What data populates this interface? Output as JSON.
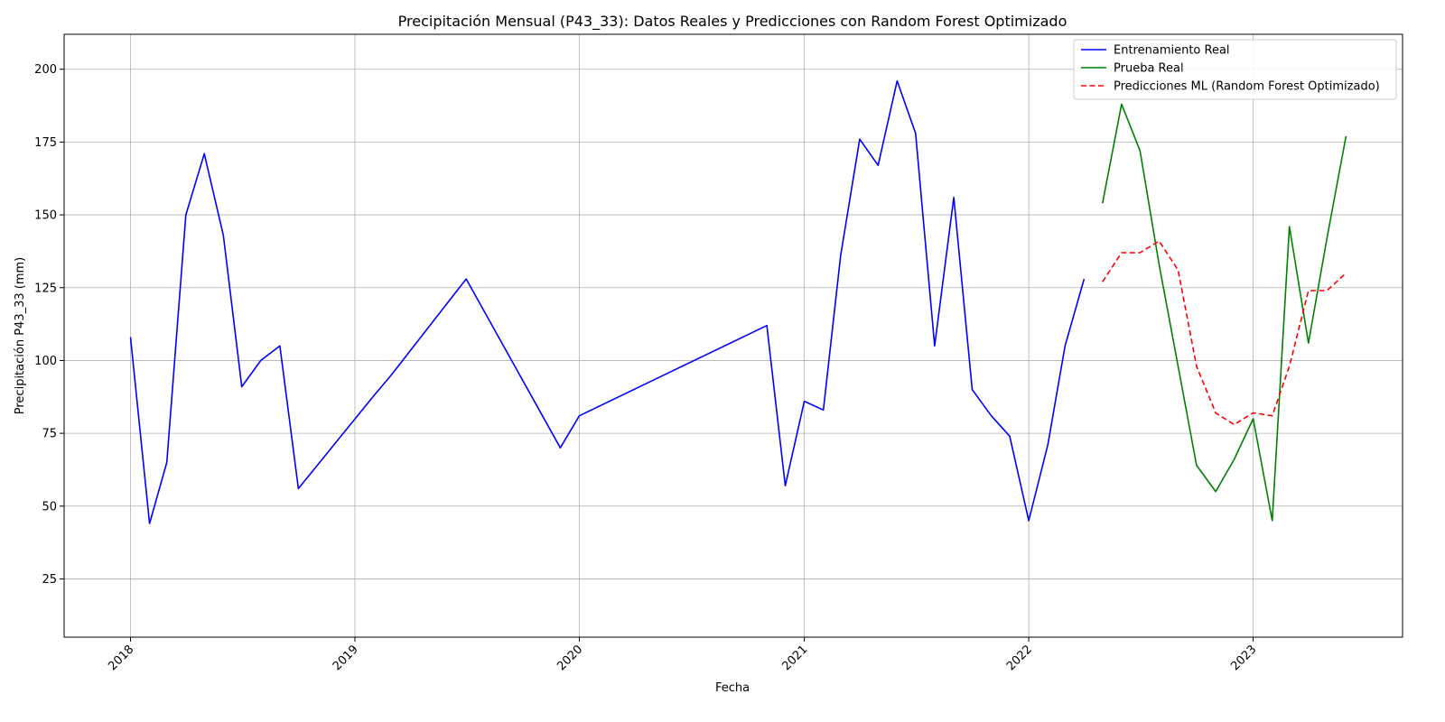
{
  "chart_data": {
    "type": "line",
    "title": "Precipitación Mensual (P43_33): Datos Reales y Predicciones con Random Forest Optimizado",
    "xlabel": "Fecha",
    "ylabel": "Precipitación P43_33 (mm)",
    "xlim": [
      "2017-09-15",
      "2023-09-01"
    ],
    "ylim": [
      5,
      212
    ],
    "x_ticks": [
      "2018",
      "2019",
      "2020",
      "2021",
      "2022",
      "2023"
    ],
    "y_ticks": [
      25,
      50,
      75,
      100,
      125,
      150,
      175,
      200
    ],
    "grid": true,
    "legend_position": "top-right",
    "series": [
      {
        "name": "Entrenamiento Real",
        "color": "#0000ff",
        "style": "solid",
        "points": [
          [
            "2018-01-01",
            108
          ],
          [
            "2018-02-01",
            44
          ],
          [
            "2018-03-01",
            65
          ],
          [
            "2018-04-01",
            150
          ],
          [
            "2018-05-01",
            171
          ],
          [
            "2018-06-01",
            143
          ],
          [
            "2018-07-01",
            91
          ],
          [
            "2018-08-01",
            100
          ],
          [
            "2018-09-01",
            105
          ],
          [
            "2018-10-01",
            56
          ],
          [
            "2019-02-01",
            88
          ],
          [
            "2019-03-01",
            95
          ],
          [
            "2019-07-01",
            128
          ],
          [
            "2019-12-01",
            70
          ],
          [
            "2020-01-01",
            81
          ],
          [
            "2020-11-01",
            112
          ],
          [
            "2020-12-01",
            57
          ],
          [
            "2021-01-01",
            86
          ],
          [
            "2021-02-01",
            83
          ],
          [
            "2021-03-01",
            136
          ],
          [
            "2021-04-01",
            176
          ],
          [
            "2021-05-01",
            167
          ],
          [
            "2021-06-01",
            196
          ],
          [
            "2021-07-01",
            178
          ],
          [
            "2021-08-01",
            105
          ],
          [
            "2021-09-01",
            156
          ],
          [
            "2021-10-01",
            90
          ],
          [
            "2021-11-01",
            81
          ],
          [
            "2021-12-01",
            74
          ],
          [
            "2022-01-01",
            45
          ],
          [
            "2022-02-01",
            71
          ],
          [
            "2022-03-01",
            105
          ],
          [
            "2022-04-01",
            128
          ]
        ]
      },
      {
        "name": "Prueba Real",
        "color": "#008000",
        "style": "solid",
        "points": [
          [
            "2022-05-01",
            154
          ],
          [
            "2022-06-01",
            188
          ],
          [
            "2022-07-01",
            172
          ],
          [
            "2022-08-01",
            133
          ],
          [
            "2022-09-01",
            98
          ],
          [
            "2022-10-01",
            64
          ],
          [
            "2022-11-01",
            55
          ],
          [
            "2022-12-01",
            66
          ],
          [
            "2023-01-01",
            80
          ],
          [
            "2023-02-01",
            45
          ],
          [
            "2023-03-01",
            146
          ],
          [
            "2023-04-01",
            106
          ],
          [
            "2023-05-01",
            142
          ],
          [
            "2023-06-01",
            177
          ]
        ]
      },
      {
        "name": "Predicciones ML (Random Forest Optimizado)",
        "color": "#ff0000",
        "style": "dashed",
        "points": [
          [
            "2022-05-01",
            127
          ],
          [
            "2022-06-01",
            137
          ],
          [
            "2022-07-01",
            137
          ],
          [
            "2022-08-01",
            141
          ],
          [
            "2022-09-01",
            131
          ],
          [
            "2022-10-01",
            98
          ],
          [
            "2022-11-01",
            82
          ],
          [
            "2022-12-01",
            78
          ],
          [
            "2023-01-01",
            82
          ],
          [
            "2023-02-01",
            81
          ],
          [
            "2023-03-01",
            98
          ],
          [
            "2023-04-01",
            124
          ],
          [
            "2023-05-01",
            124
          ],
          [
            "2023-06-01",
            130
          ]
        ]
      }
    ]
  }
}
